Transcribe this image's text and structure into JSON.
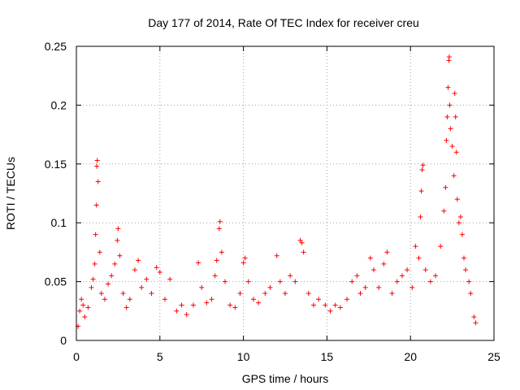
{
  "chart_data": {
    "type": "scatter",
    "title": "Day 177 of 2014, Rate Of TEC Index for receiver creu",
    "xlabel": "GPS time / hours",
    "ylabel": "ROTI / TECUs",
    "xlim": [
      0,
      25
    ],
    "ylim": [
      0,
      0.25
    ],
    "xticks": [
      0,
      5,
      10,
      15,
      20,
      25
    ],
    "xtick_labels": [
      "0",
      "5",
      "10",
      "15",
      "20",
      "25"
    ],
    "yticks": [
      0,
      0.05,
      0.1,
      0.15,
      0.2,
      0.25
    ],
    "ytick_labels": [
      "0",
      "0.05",
      "0.1",
      "0.15",
      "0.2",
      "0.25"
    ],
    "grid": true,
    "marker": "+",
    "color": "#ff0000",
    "series": [
      {
        "name": "ROTI",
        "points": [
          [
            0.1,
            0.012
          ],
          [
            0.2,
            0.025
          ],
          [
            0.3,
            0.035
          ],
          [
            0.4,
            0.03
          ],
          [
            0.5,
            0.02
          ],
          [
            0.7,
            0.028
          ],
          [
            0.9,
            0.045
          ],
          [
            1.0,
            0.052
          ],
          [
            1.1,
            0.065
          ],
          [
            1.15,
            0.09
          ],
          [
            1.2,
            0.115
          ],
          [
            1.22,
            0.148
          ],
          [
            1.25,
            0.153
          ],
          [
            1.3,
            0.135
          ],
          [
            1.4,
            0.075
          ],
          [
            1.5,
            0.04
          ],
          [
            1.7,
            0.035
          ],
          [
            1.9,
            0.048
          ],
          [
            2.1,
            0.055
          ],
          [
            2.3,
            0.065
          ],
          [
            2.45,
            0.085
          ],
          [
            2.5,
            0.095
          ],
          [
            2.6,
            0.072
          ],
          [
            2.8,
            0.04
          ],
          [
            3.0,
            0.028
          ],
          [
            3.2,
            0.035
          ],
          [
            3.5,
            0.06
          ],
          [
            3.7,
            0.068
          ],
          [
            3.9,
            0.045
          ],
          [
            4.2,
            0.052
          ],
          [
            4.5,
            0.04
          ],
          [
            4.8,
            0.062
          ],
          [
            5.0,
            0.058
          ],
          [
            5.3,
            0.035
          ],
          [
            5.6,
            0.052
          ],
          [
            6.0,
            0.025
          ],
          [
            6.3,
            0.03
          ],
          [
            6.6,
            0.022
          ],
          [
            7.0,
            0.03
          ],
          [
            7.3,
            0.066
          ],
          [
            7.5,
            0.045
          ],
          [
            7.8,
            0.032
          ],
          [
            8.1,
            0.035
          ],
          [
            8.3,
            0.055
          ],
          [
            8.4,
            0.068
          ],
          [
            8.55,
            0.095
          ],
          [
            8.6,
            0.101
          ],
          [
            8.7,
            0.075
          ],
          [
            8.9,
            0.05
          ],
          [
            9.2,
            0.03
          ],
          [
            9.5,
            0.028
          ],
          [
            9.8,
            0.04
          ],
          [
            10.0,
            0.066
          ],
          [
            10.1,
            0.07
          ],
          [
            10.3,
            0.05
          ],
          [
            10.6,
            0.035
          ],
          [
            10.9,
            0.032
          ],
          [
            11.3,
            0.04
          ],
          [
            11.6,
            0.045
          ],
          [
            12.0,
            0.072
          ],
          [
            12.2,
            0.05
          ],
          [
            12.5,
            0.04
          ],
          [
            12.8,
            0.055
          ],
          [
            13.1,
            0.05
          ],
          [
            13.4,
            0.085
          ],
          [
            13.5,
            0.083
          ],
          [
            13.6,
            0.075
          ],
          [
            13.9,
            0.04
          ],
          [
            14.2,
            0.03
          ],
          [
            14.5,
            0.035
          ],
          [
            14.9,
            0.03
          ],
          [
            15.2,
            0.025
          ],
          [
            15.5,
            0.03
          ],
          [
            15.8,
            0.028
          ],
          [
            16.2,
            0.035
          ],
          [
            16.5,
            0.05
          ],
          [
            16.8,
            0.055
          ],
          [
            17.0,
            0.04
          ],
          [
            17.3,
            0.045
          ],
          [
            17.6,
            0.07
          ],
          [
            17.8,
            0.06
          ],
          [
            18.1,
            0.045
          ],
          [
            18.4,
            0.065
          ],
          [
            18.6,
            0.075
          ],
          [
            18.9,
            0.04
          ],
          [
            19.2,
            0.05
          ],
          [
            19.5,
            0.055
          ],
          [
            19.8,
            0.06
          ],
          [
            20.1,
            0.045
          ],
          [
            20.3,
            0.08
          ],
          [
            20.5,
            0.07
          ],
          [
            20.6,
            0.105
          ],
          [
            20.65,
            0.127
          ],
          [
            20.7,
            0.145
          ],
          [
            20.75,
            0.149
          ],
          [
            20.9,
            0.06
          ],
          [
            21.2,
            0.05
          ],
          [
            21.5,
            0.055
          ],
          [
            21.8,
            0.08
          ],
          [
            22.0,
            0.11
          ],
          [
            22.1,
            0.13
          ],
          [
            22.15,
            0.17
          ],
          [
            22.2,
            0.19
          ],
          [
            22.25,
            0.215
          ],
          [
            22.3,
            0.238
          ],
          [
            22.32,
            0.241
          ],
          [
            22.35,
            0.2
          ],
          [
            22.4,
            0.18
          ],
          [
            22.5,
            0.165
          ],
          [
            22.6,
            0.14
          ],
          [
            22.65,
            0.21
          ],
          [
            22.7,
            0.19
          ],
          [
            22.75,
            0.16
          ],
          [
            22.8,
            0.12
          ],
          [
            22.9,
            0.1
          ],
          [
            23.0,
            0.105
          ],
          [
            23.1,
            0.09
          ],
          [
            23.2,
            0.07
          ],
          [
            23.3,
            0.06
          ],
          [
            23.5,
            0.05
          ],
          [
            23.6,
            0.04
          ],
          [
            23.8,
            0.02
          ],
          [
            23.9,
            0.015
          ]
        ]
      }
    ]
  }
}
